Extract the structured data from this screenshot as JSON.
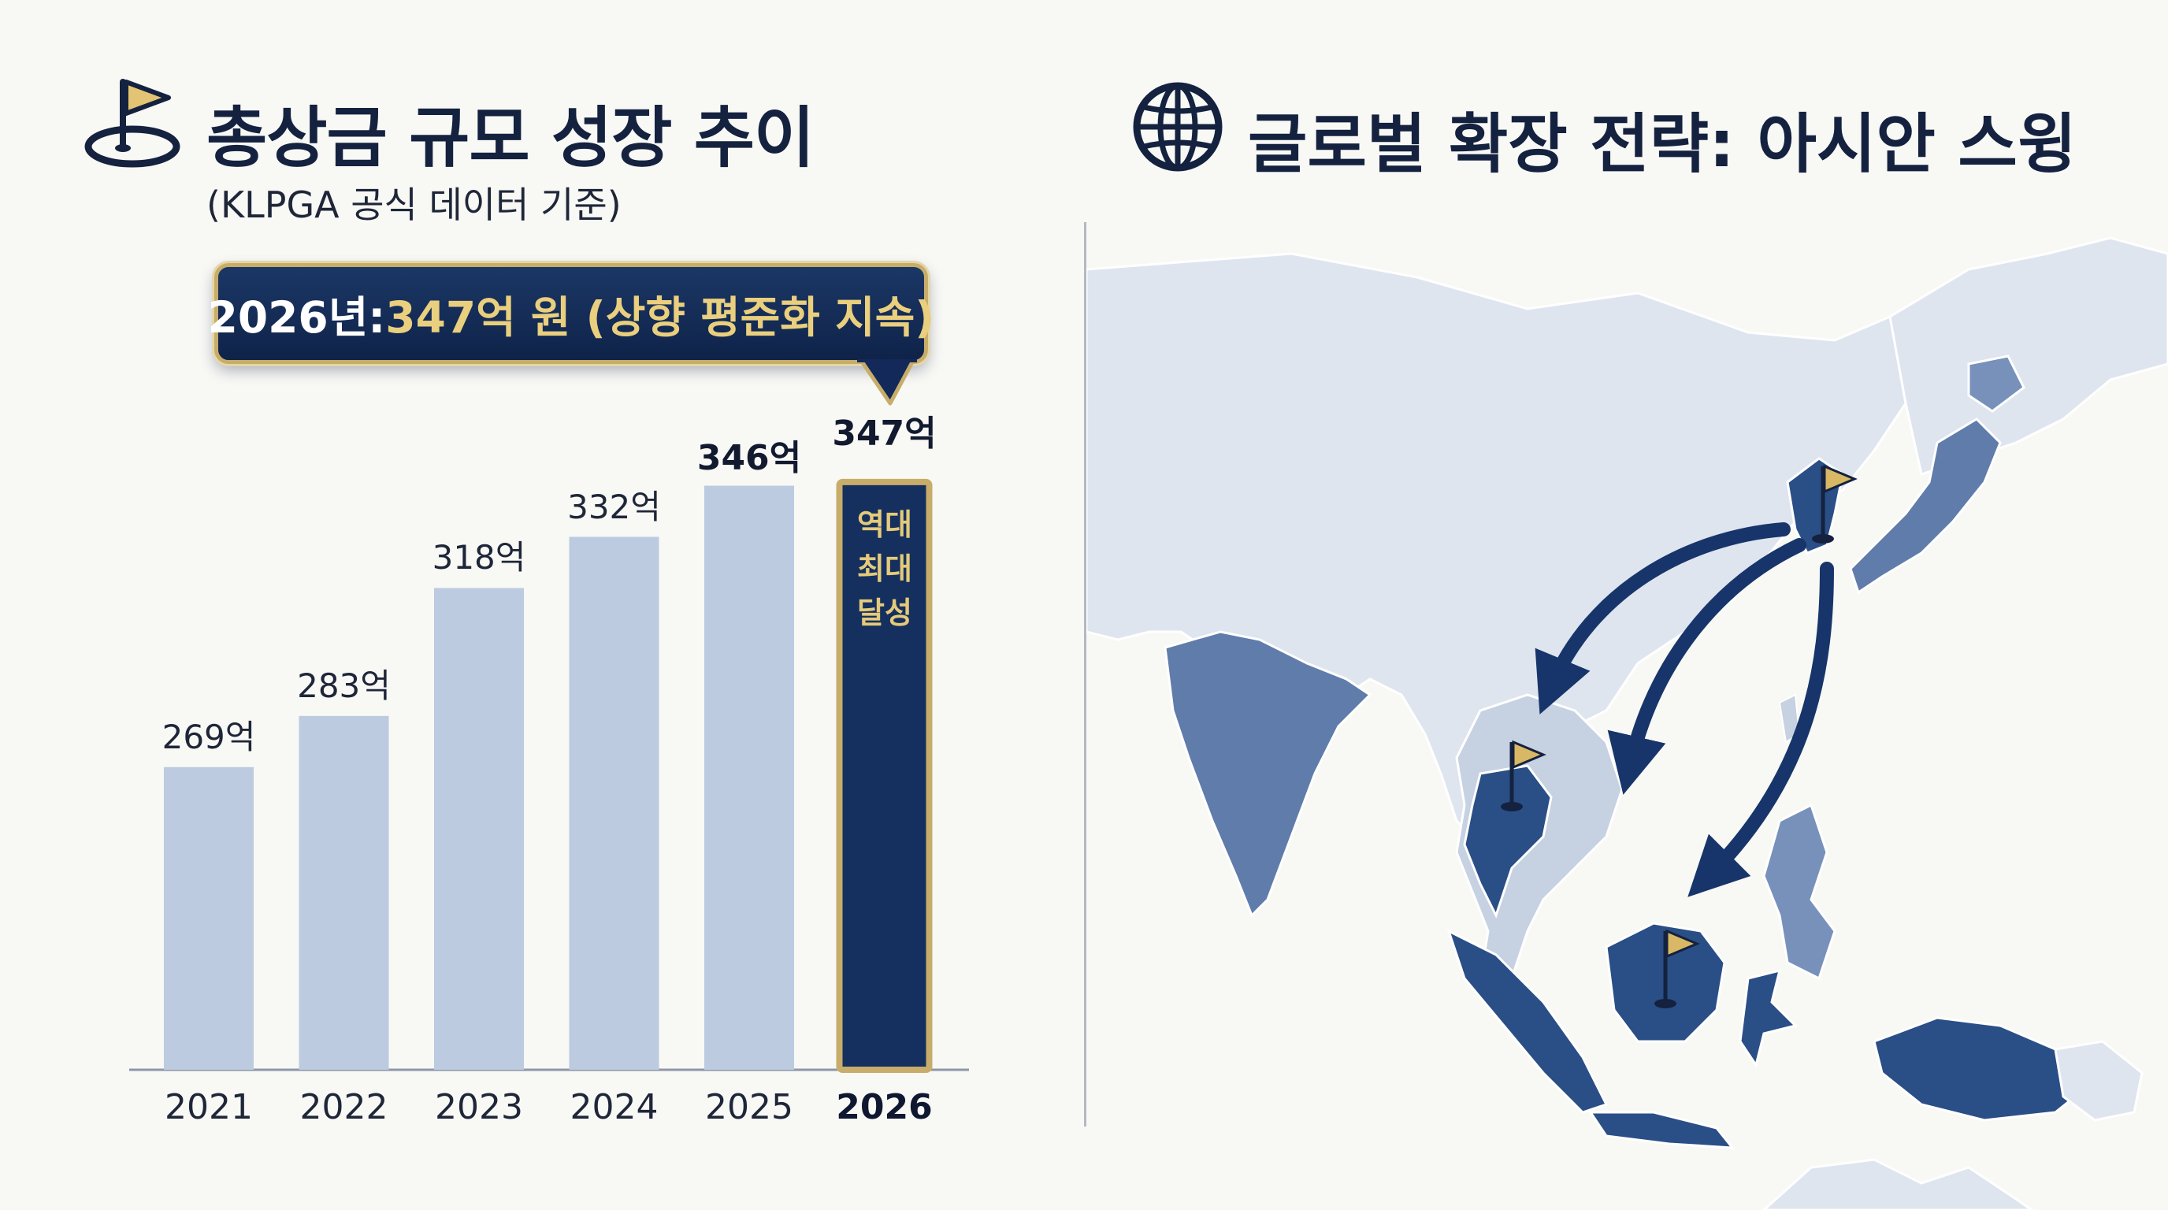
{
  "left_panel": {
    "title": "총상금 규모 성장 추이",
    "subtitle": "(KLPGA 공식 데이터 기준)",
    "icon": "golf-flag-icon",
    "callout": {
      "prefix": "2026년: ",
      "highlight": "347억 원 (상향 평준화 지속)"
    },
    "highlight_bar_note": [
      "역대",
      "최대",
      "달성"
    ]
  },
  "chart_data": {
    "type": "bar",
    "title": "총상금 규모 성장 추이",
    "categories": [
      "2021",
      "2022",
      "2023",
      "2024",
      "2025",
      "2026"
    ],
    "values": [
      269,
      283,
      318,
      332,
      346,
      347
    ],
    "value_labels": [
      "269억",
      "283억",
      "318억",
      "332억",
      "346억",
      "347억"
    ],
    "unit": "억",
    "highlight_category": "2026",
    "bar_color": "#bccbe0",
    "highlight_color": "#15305e",
    "highlight_border": "#c8ad6a"
  },
  "right_panel": {
    "title": "글로벌 확장 전략: 아시안 스윙",
    "icon": "globe-icon",
    "map": {
      "flags": [
        "South Korea",
        "Thailand",
        "Borneo"
      ],
      "arrows_from": "South Korea",
      "arrows_to": [
        "Thailand",
        "Vietnam",
        "Indonesia"
      ]
    },
    "colors": {
      "land_light": "#dfe5ef",
      "land_highlight": "#5a7aab",
      "land_dark": "#2a4e86",
      "arrow": "#17356a",
      "flag": "#d9b865"
    }
  }
}
